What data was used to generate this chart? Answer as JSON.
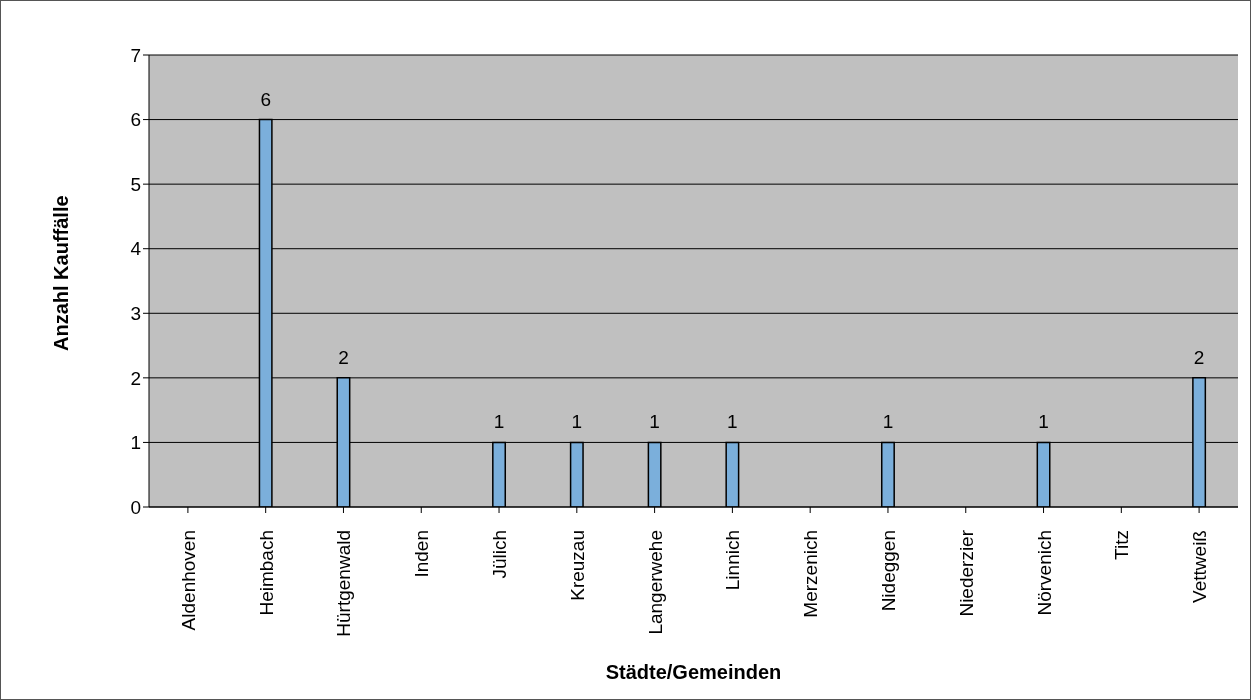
{
  "chart_data": {
    "type": "bar",
    "xlabel": "Städte/Gemeinden",
    "ylabel": "Anzahl Kauffälle",
    "categories": [
      "Aldenhoven",
      "Heimbach",
      "Hürtgenwald",
      "Inden",
      "Jülich",
      "Kreuzau",
      "Langerwehe",
      "Linnich",
      "Merzenich",
      "Nideggen",
      "Niederzier",
      "Nörvenich",
      "Titz",
      "Vettweiß"
    ],
    "values": [
      0,
      6,
      2,
      0,
      1,
      1,
      1,
      1,
      0,
      1,
      0,
      1,
      0,
      2
    ],
    "value_labels": [
      null,
      "6",
      "2",
      null,
      "1",
      "1",
      "1",
      "1",
      null,
      "1",
      null,
      "1",
      null,
      "2"
    ],
    "color": "#7bafdb",
    "ylim": [
      0,
      7
    ],
    "yticks": [
      0,
      1,
      2,
      3,
      4,
      5,
      6,
      7
    ],
    "grid": "y",
    "legend": false
  }
}
